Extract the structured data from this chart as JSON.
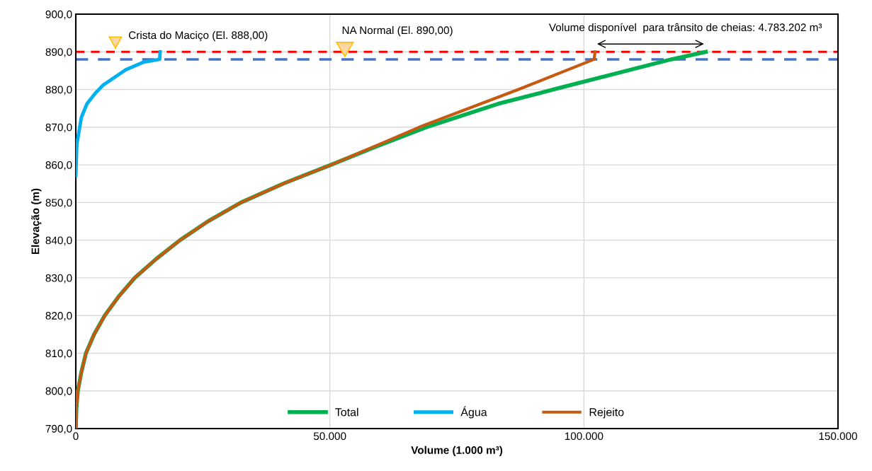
{
  "chart_data": {
    "type": "line",
    "xlabel": "Volume (1.000 m³)",
    "ylabel": "Elevação (m)",
    "xlim": [
      0,
      150000
    ],
    "ylim": [
      790,
      900
    ],
    "xticks": [
      {
        "value": 0,
        "label": "0"
      },
      {
        "value": 50000,
        "label": "50.000"
      },
      {
        "value": 100000,
        "label": "100.000"
      },
      {
        "value": 150000,
        "label": "150.000"
      }
    ],
    "yticks": [
      {
        "value": 790,
        "label": "790,0"
      },
      {
        "value": 800,
        "label": "800,0"
      },
      {
        "value": 810,
        "label": "810,0"
      },
      {
        "value": 820,
        "label": "820,0"
      },
      {
        "value": 830,
        "label": "830,0"
      },
      {
        "value": 840,
        "label": "840,0"
      },
      {
        "value": 850,
        "label": "850,0"
      },
      {
        "value": 860,
        "label": "860,0"
      },
      {
        "value": 870,
        "label": "870,0"
      },
      {
        "value": 880,
        "label": "880,0"
      },
      {
        "value": 890,
        "label": "890,0"
      },
      {
        "value": 900,
        "label": "900,0"
      }
    ],
    "grid": true,
    "legend": "bottom",
    "marker": "none",
    "line_style": "solid",
    "series": [
      {
        "name": "Total",
        "color": "#00b050",
        "x": [
          0,
          100,
          400,
          1100,
          2000,
          3600,
          5700,
          8400,
          11600,
          15800,
          20500,
          26000,
          32500,
          40800,
          50200,
          59400,
          69000,
          83100,
          94000,
          117200,
          124000
        ],
        "values": [
          790,
          795,
          800,
          805,
          810,
          815,
          820,
          825,
          830,
          835,
          840,
          845,
          850,
          855,
          860,
          865,
          870,
          876.2,
          880,
          888,
          890
        ]
      },
      {
        "name": "Água",
        "color": "#00b0f0",
        "x": [
          0,
          200,
          1100,
          2200,
          3900,
          5400,
          9800,
          13200,
          16500,
          16600
        ],
        "values": [
          857.1,
          865.4,
          872.6,
          876.2,
          879.1,
          881.2,
          885.2,
          887.2,
          888,
          890
        ]
      },
      {
        "name": "Rejeito",
        "color": "#c55a11",
        "x": [
          0,
          100,
          400,
          1100,
          2000,
          3600,
          5700,
          8400,
          11600,
          15800,
          20500,
          26000,
          32500,
          40800,
          50200,
          59000,
          67600,
          87100,
          102000,
          102200
        ],
        "values": [
          790,
          795,
          800,
          805,
          810,
          815,
          820,
          825,
          830,
          835,
          840,
          845,
          850,
          855,
          860,
          865,
          870,
          880,
          888,
          890
        ]
      }
    ],
    "ref_lines": [
      {
        "axis": "y",
        "value": 888,
        "label": "Crista do Maciço (El. 888,00)",
        "color": "#4472c4",
        "line_style": "dashed"
      },
      {
        "axis": "y",
        "value": 890,
        "label": "NA Normal (El. 890,00)",
        "color": "#ff0000",
        "line_style": "dashed"
      }
    ],
    "annotations": [
      "Volume disponível  para trânsito de cheias: 4.783.202 m³"
    ]
  }
}
